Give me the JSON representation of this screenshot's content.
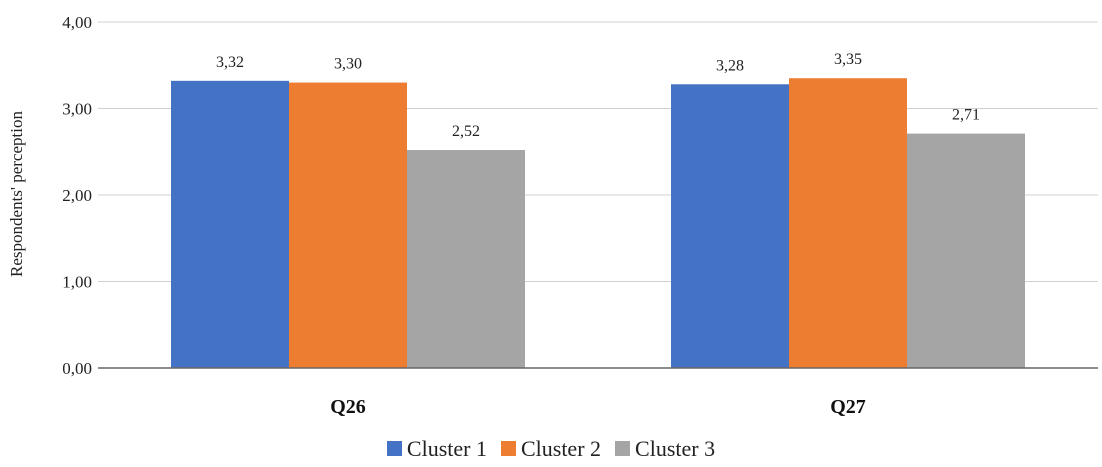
{
  "chart_data": {
    "type": "bar",
    "categories": [
      "Q26",
      "Q27"
    ],
    "series": [
      {
        "name": "Cluster 1",
        "color": "#4472C4",
        "values": [
          3.32,
          3.28
        ],
        "labels": [
          "3,32",
          "3,28"
        ]
      },
      {
        "name": "Cluster 2",
        "color": "#ED7D31",
        "values": [
          3.3,
          3.35
        ],
        "labels": [
          "3,30",
          "3,35"
        ]
      },
      {
        "name": "Cluster 3",
        "color": "#A5A5A5",
        "values": [
          2.52,
          2.71
        ],
        "labels": [
          "2,52",
          "2,71"
        ]
      }
    ],
    "ylabel": "Respondents' perception",
    "ylim": [
      0,
      4
    ],
    "yticks": [
      0,
      1,
      2,
      3,
      4
    ],
    "ytick_labels": [
      "0,00",
      "1,00",
      "2,00",
      "3,00",
      "4,00"
    ],
    "grid": true,
    "legend": "bottom"
  }
}
